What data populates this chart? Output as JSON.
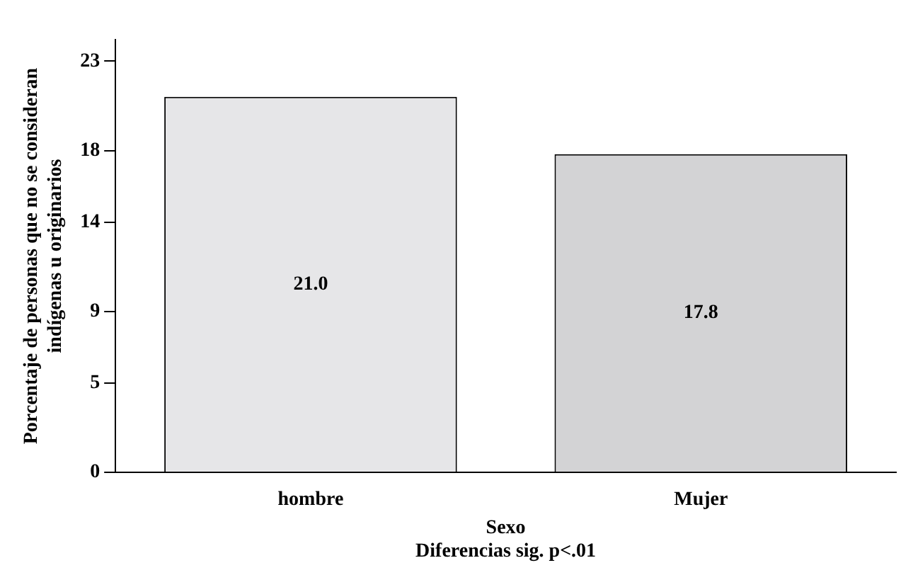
{
  "chart_data": {
    "type": "bar",
    "categories": [
      "hombre",
      "Mujer"
    ],
    "values": [
      21.0,
      17.8
    ],
    "value_labels": [
      "21.0",
      "17.8"
    ],
    "colors": [
      "#e6e6e8",
      "#d3d3d5"
    ],
    "xlabel": "Sexo",
    "ylabel": "Porcentaje de personas que no se consideran\nindígenas u originarios",
    "annotations": [
      "Diferencias sig. p<.01"
    ],
    "ylim": [
      0,
      24.2
    ],
    "yticks": [
      0,
      5,
      9,
      14,
      18,
      23
    ],
    "grid": false,
    "legend": false
  }
}
